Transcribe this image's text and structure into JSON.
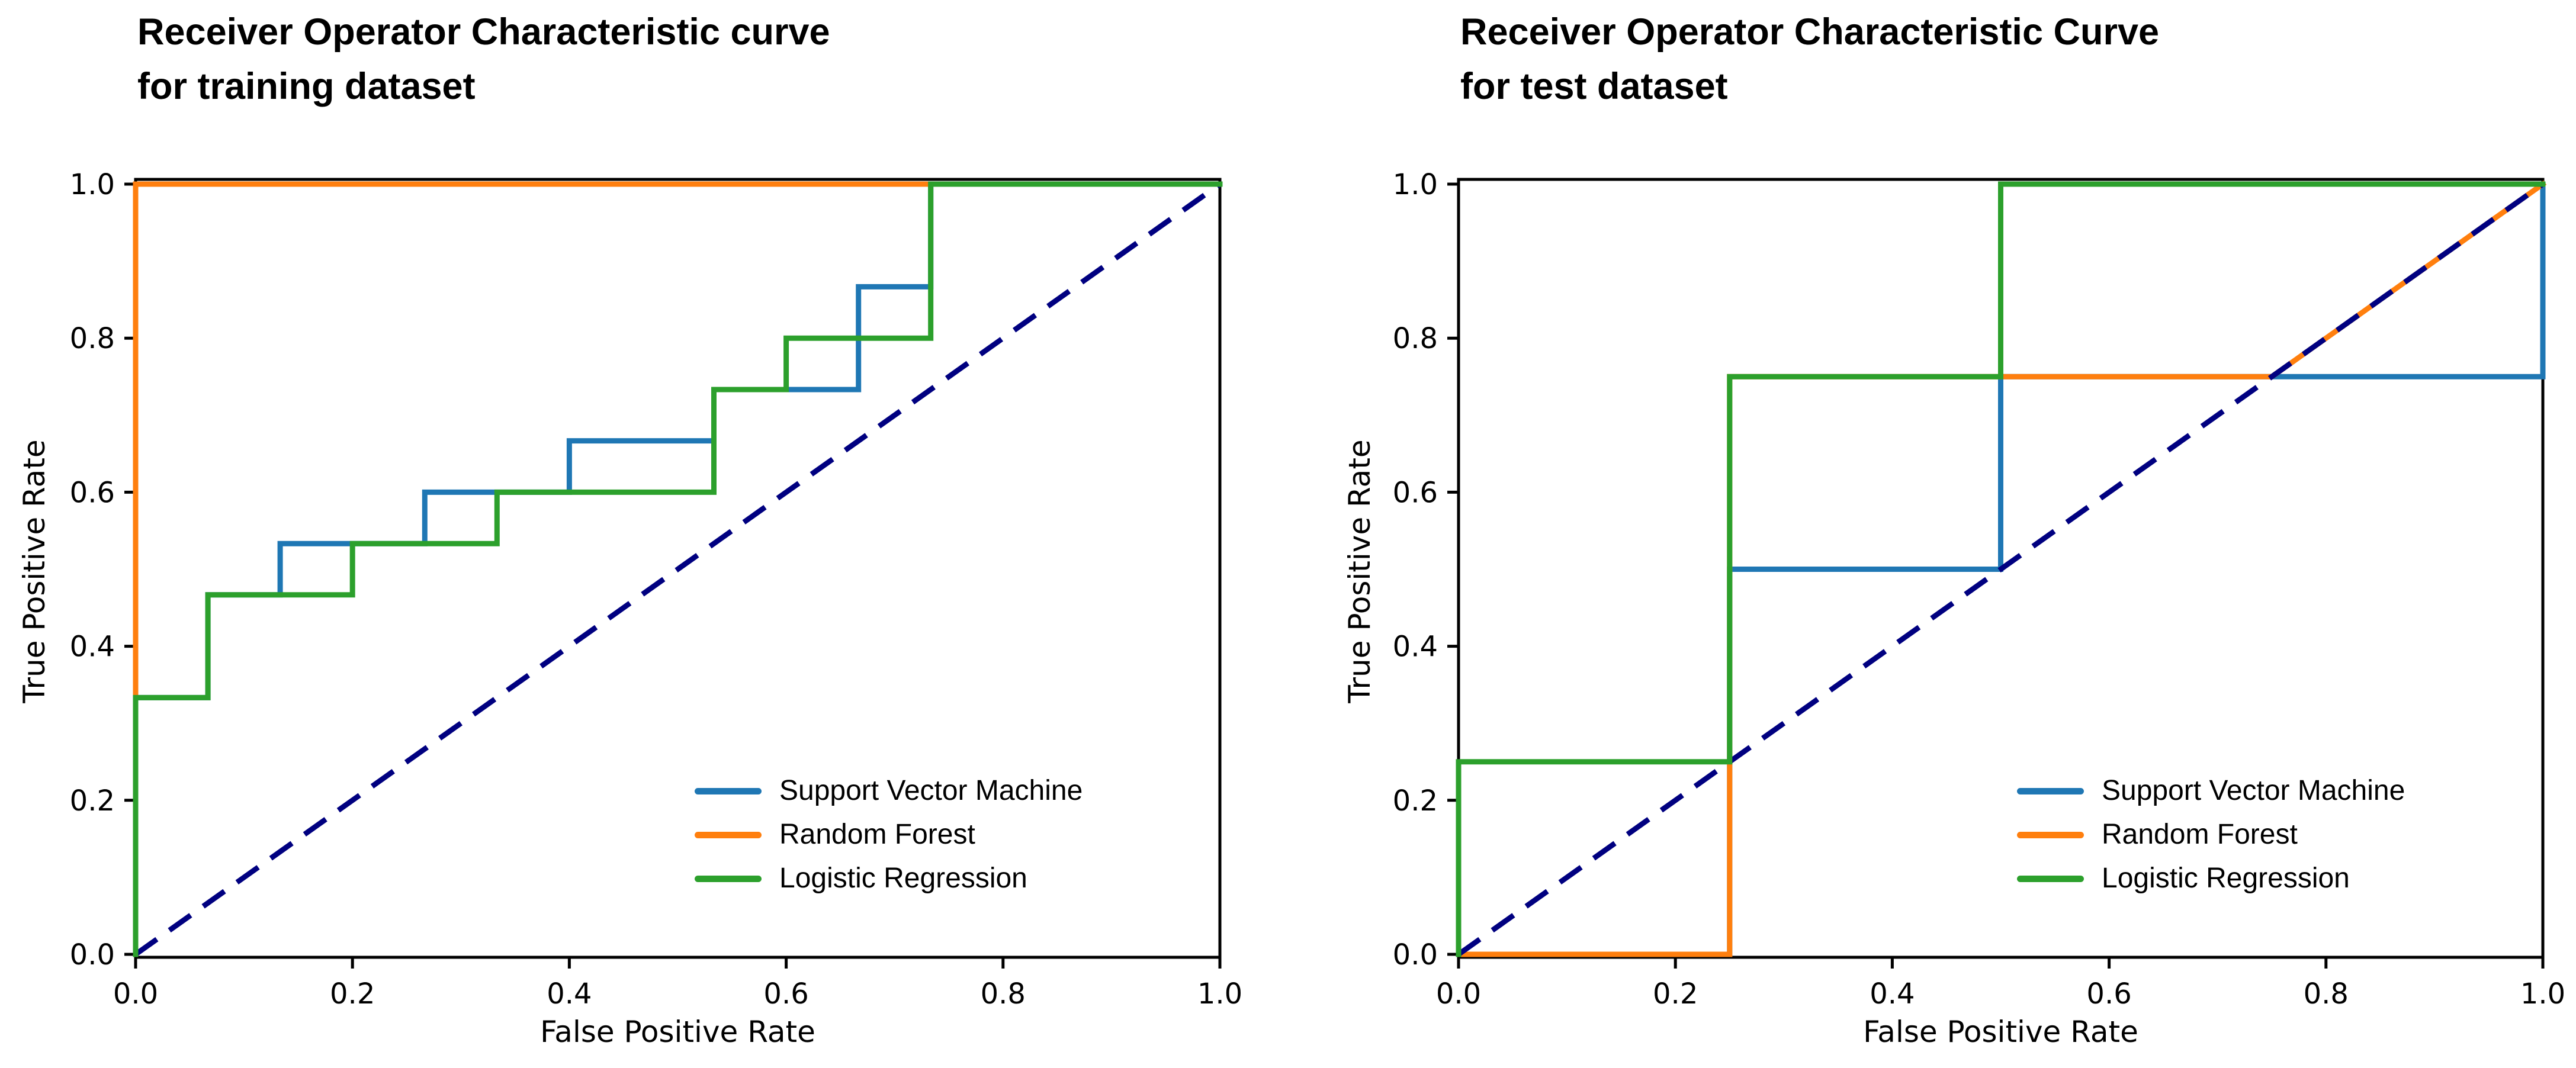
{
  "figure": {
    "background": "#ffffff",
    "text_color": "#000000",
    "spine_color": "#000000"
  },
  "chart_data": [
    {
      "type": "line",
      "subtype": "roc-step-curves",
      "title_lines": [
        "Receiver Operator Characteristic curve",
        "for training dataset"
      ],
      "xlabel": "False Positive Rate",
      "ylabel": "True Positive Rate",
      "xlim": [
        0.0,
        1.0
      ],
      "ylim": [
        0.0,
        1.0
      ],
      "xticks": [
        0.0,
        0.2,
        0.4,
        0.6,
        0.8,
        1.0
      ],
      "yticks": [
        0.0,
        0.2,
        0.4,
        0.6,
        0.8,
        1.0
      ],
      "xtick_labels": [
        "0.0",
        "0.2",
        "0.4",
        "0.6",
        "0.8",
        "1.0"
      ],
      "ytick_labels": [
        "0.0",
        "0.2",
        "0.4",
        "0.6",
        "0.8",
        "1.0"
      ],
      "grid": false,
      "legend_position": "lower right",
      "legend_frame": false,
      "diagonal": {
        "name": "chance-line",
        "color": "#000080",
        "dashed": true,
        "x": [
          0.0,
          1.0
        ],
        "y": [
          0.0,
          1.0
        ]
      },
      "series": [
        {
          "name": "Support Vector Machine",
          "color": "#1f77b4",
          "x": [
            0,
            0,
            0.0667,
            0.0667,
            0.1333,
            0.1333,
            0.2667,
            0.2667,
            0.4,
            0.4,
            0.5333,
            0.5333,
            0.6667,
            0.6667,
            0.7333,
            0.7333,
            1.0
          ],
          "y": [
            0,
            0.3333,
            0.3333,
            0.4667,
            0.4667,
            0.5333,
            0.5333,
            0.6,
            0.6,
            0.6667,
            0.6667,
            0.7333,
            0.7333,
            0.8667,
            0.8667,
            1.0,
            1.0
          ]
        },
        {
          "name": "Random Forest",
          "color": "#ff7f0e",
          "x": [
            0,
            0,
            1.0
          ],
          "y": [
            0,
            1.0,
            1.0
          ]
        },
        {
          "name": "Logistic Regression",
          "color": "#2ca02c",
          "x": [
            0,
            0,
            0.0667,
            0.0667,
            0.2,
            0.2,
            0.3333,
            0.3333,
            0.5333,
            0.5333,
            0.6,
            0.6,
            0.7333,
            0.7333,
            1.0
          ],
          "y": [
            0,
            0.3333,
            0.3333,
            0.4667,
            0.4667,
            0.5333,
            0.5333,
            0.6,
            0.6,
            0.7333,
            0.7333,
            0.8,
            0.8,
            1.0,
            1.0
          ]
        }
      ]
    },
    {
      "type": "line",
      "subtype": "roc-step-curves",
      "title_lines": [
        "Receiver Operator Characteristic Curve",
        "for test dataset"
      ],
      "xlabel": "False Positive Rate",
      "ylabel": "True Positive Rate",
      "xlim": [
        0.0,
        1.0
      ],
      "ylim": [
        0.0,
        1.0
      ],
      "xticks": [
        0.0,
        0.2,
        0.4,
        0.6,
        0.8,
        1.0
      ],
      "yticks": [
        0.0,
        0.2,
        0.4,
        0.6,
        0.8,
        1.0
      ],
      "xtick_labels": [
        "0.0",
        "0.2",
        "0.4",
        "0.6",
        "0.8",
        "1.0"
      ],
      "ytick_labels": [
        "0.0",
        "0.2",
        "0.4",
        "0.6",
        "0.8",
        "1.0"
      ],
      "grid": false,
      "legend_position": "lower right",
      "legend_frame": false,
      "diagonal": {
        "name": "chance-line",
        "color": "#000080",
        "dashed": true,
        "x": [
          0.0,
          1.0
        ],
        "y": [
          0.0,
          1.0
        ]
      },
      "series": [
        {
          "name": "Support Vector Machine",
          "color": "#1f77b4",
          "x": [
            0,
            0.25,
            0.25,
            0.5,
            0.5,
            1.0,
            1.0
          ],
          "y": [
            0,
            0,
            0.5,
            0.5,
            0.75,
            0.75,
            1.0
          ]
        },
        {
          "name": "Random Forest",
          "color": "#ff7f0e",
          "x": [
            0,
            0.25,
            0.25,
            0.75,
            1.0
          ],
          "y": [
            0,
            0,
            0.75,
            0.75,
            1.0
          ]
        },
        {
          "name": "Logistic Regression",
          "color": "#2ca02c",
          "x": [
            0,
            0,
            0.25,
            0.25,
            0.5,
            0.5,
            1.0
          ],
          "y": [
            0,
            0.25,
            0.25,
            0.75,
            0.75,
            1.0,
            1.0
          ]
        }
      ]
    }
  ]
}
